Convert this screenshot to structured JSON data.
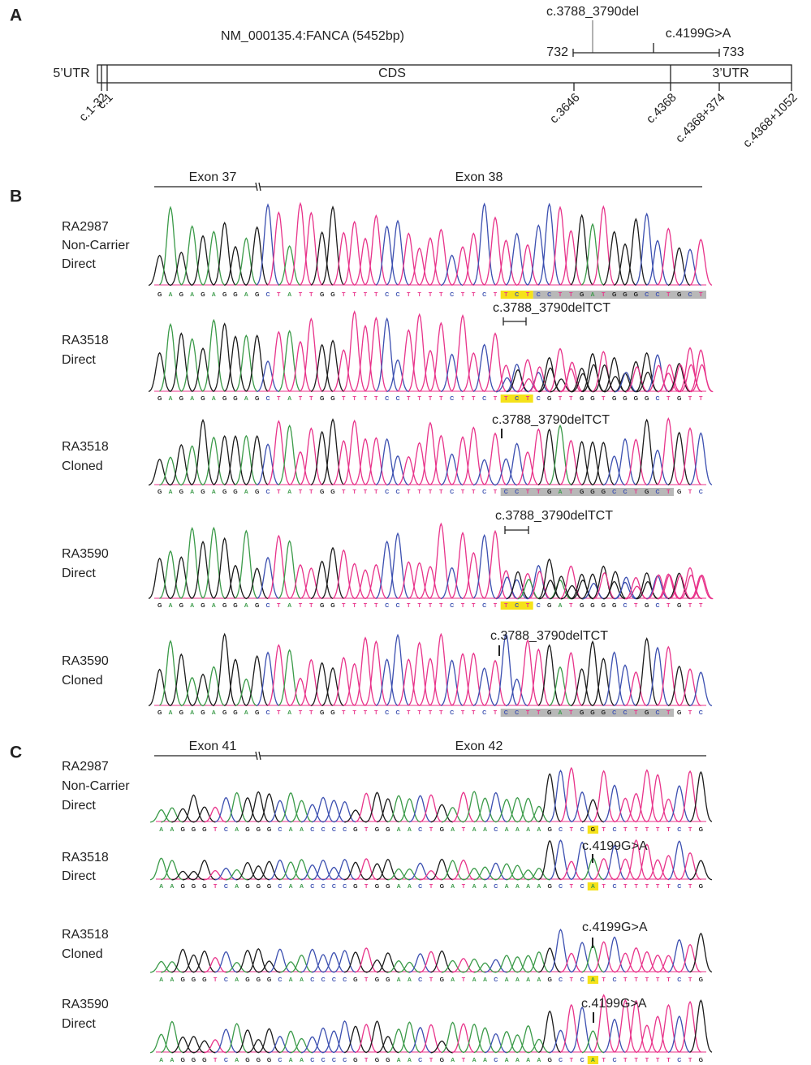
{
  "panel_a": {
    "label": "A",
    "transcript": "NM_000135.4:FANCA (5452bp)",
    "variant_1": "c.3788_3790del",
    "variant_2": "c.4199G>A",
    "amplicon_start": 732,
    "amplicon_end": 733,
    "regions": [
      "5’UTR",
      "CDS",
      "3’UTR"
    ],
    "positions": [
      "c.1-32",
      "c.1",
      "c.3646",
      "c.4368",
      "c.4368+374",
      "c.4368+1052"
    ]
  },
  "panel_b": {
    "label": "B",
    "exons": [
      "Exon 37",
      "Exon 38"
    ],
    "rows": [
      {
        "sample": [
          "RA2987",
          "Non-Carrier",
          "Direct"
        ],
        "sequence": "GAGAGAGGAGCTATTGGTTTTCCTTTTCTTCTTCTCCTTGATGGGCCTGCT"
      },
      {
        "sample": [
          "RA3518",
          "Direct"
        ],
        "annotation": "c.3788_3790delTCT",
        "sequence": "GAGAGAGGAGCTATTGGTTTTCCTTTTCTTCTTCTCGTTGGTGGGGCTGTT"
      },
      {
        "sample": [
          "RA3518",
          "Cloned"
        ],
        "annotation": "c.3788_3790delTCT",
        "sequence": "GAGAGAGGAGCTATTGGTTTTCCTTTTCTTCTCCTTGATGGGCCTGCTGTC"
      },
      {
        "sample": [
          "RA3590",
          "Direct"
        ],
        "annotation": "c.3788_3790delTCT",
        "sequence": "GAGAGAGGAGCTATTGGTTTTCCTTTTCTTCTTCTCGATGGGGCTGCTGTT"
      },
      {
        "sample": [
          "RA3590",
          "Cloned"
        ],
        "annotation": "c.3788_3790delTCT",
        "sequence": "GAGAGAGGAGCTATTGGTTTTCCTTTTCTTCTCCTTGATGGGCCTGCTGTC"
      }
    ]
  },
  "panel_c": {
    "label": "C",
    "exons": [
      "Exon 41",
      "Exon 42"
    ],
    "rows": [
      {
        "sample": [
          "RA2987",
          "Non-Carrier",
          "Direct"
        ],
        "sequence": "AAGGGTCAGGGCAACCCCGTGGAACTGATAACAAAAGCTCGTCTTTTTCTG"
      },
      {
        "sample": [
          "RA3518",
          "Direct"
        ],
        "annotation": "c.4199G>A",
        "sequence": "AAGGGTCAGGGCAACCCCGTGGAACTGATAACAAAAGCTCATCTTTTTCTG"
      },
      {
        "sample": [
          "RA3518",
          "Cloned"
        ],
        "annotation": "c.4199G>A",
        "sequence": "AAGGGTCAGGGCAACCCCGTGGAACTGATAACAAAAGCTCATCTTTTTCTG"
      },
      {
        "sample": [
          "RA3590",
          "Direct"
        ],
        "annotation": "c.4199G>A",
        "sequence": "AAGGGTCAGGGCAACCCCGTGGAACTGATAACAAAAGCTCATCTTTTTCTG"
      }
    ]
  }
}
